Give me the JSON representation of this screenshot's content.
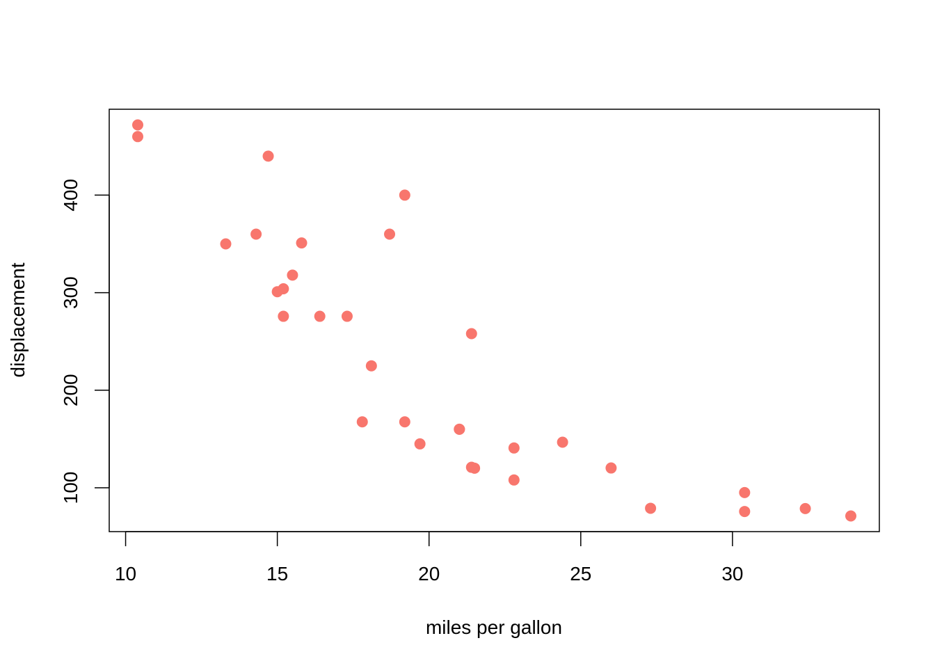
{
  "chart_data": {
    "type": "scatter",
    "title": "",
    "xlabel": "miles per gallon",
    "ylabel": "displacement",
    "xlim": [
      9.46,
      34.84
    ],
    "ylim": [
      55.06,
      488.04
    ],
    "xticks": [
      10,
      15,
      20,
      25,
      30
    ],
    "yticks": [
      100,
      200,
      300,
      400
    ],
    "xtick_labels": [
      "10",
      "15",
      "20",
      "25",
      "30"
    ],
    "ytick_labels": [
      "100",
      "200",
      "300",
      "400"
    ],
    "grid": false,
    "point_color": "#F8766D",
    "x": [
      21.0,
      21.0,
      22.8,
      21.4,
      18.7,
      18.1,
      14.3,
      24.4,
      22.8,
      19.2,
      17.8,
      16.4,
      17.3,
      15.2,
      10.4,
      10.4,
      14.7,
      32.4,
      30.4,
      33.9,
      21.5,
      15.5,
      15.2,
      13.3,
      19.2,
      27.3,
      26.0,
      30.4,
      15.8,
      19.7,
      15.0,
      21.4
    ],
    "y": [
      160,
      160,
      108,
      258,
      360,
      225,
      360,
      146.7,
      140.8,
      167.6,
      167.6,
      275.8,
      275.8,
      275.8,
      472,
      460,
      440,
      78.7,
      75.7,
      71.1,
      120.1,
      318,
      304,
      350,
      400,
      79,
      120.3,
      95.1,
      351,
      145,
      301,
      121
    ]
  }
}
